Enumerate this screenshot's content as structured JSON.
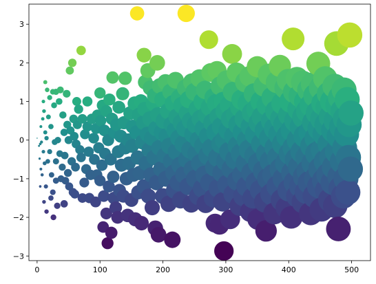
{
  "chart_data": {
    "type": "scatter",
    "title": "",
    "xlabel": "",
    "ylabel": "",
    "xlim": [
      -13,
      530
    ],
    "ylim": [
      -3.12,
      3.52
    ],
    "x_ticks": [
      0,
      100,
      200,
      300,
      400,
      500
    ],
    "y_ticks": [
      -3,
      -2,
      -1,
      0,
      1,
      2,
      3
    ],
    "grid": false,
    "legend": "none",
    "colormap": "viridis",
    "color_encodes": "y",
    "size_encodes": "x",
    "color_range": [
      -2.9,
      3.3
    ],
    "points": [
      [
        0,
        0.05
      ],
      [
        3,
        -0.15
      ],
      [
        4,
        -0.48
      ],
      [
        5,
        -1.2
      ],
      [
        5,
        -0.1
      ],
      [
        6,
        -0.75
      ],
      [
        6,
        0.35
      ],
      [
        7,
        -0.05
      ],
      [
        8,
        -0.9
      ],
      [
        9,
        0.55
      ],
      [
        10,
        -0.3
      ],
      [
        10,
        1.0
      ],
      [
        11,
        -1.6
      ],
      [
        11,
        0.75
      ],
      [
        12,
        -0.6
      ],
      [
        13,
        1.5
      ],
      [
        13,
        0.2
      ],
      [
        14,
        -1.2
      ],
      [
        15,
        -1.85
      ],
      [
        15,
        0.05
      ],
      [
        16,
        1.3
      ],
      [
        17,
        -0.55
      ],
      [
        18,
        0.6
      ],
      [
        20,
        -0.3
      ],
      [
        20,
        1.1
      ],
      [
        22,
        -1.5
      ],
      [
        22,
        0.35
      ],
      [
        23,
        -0.9
      ],
      [
        25,
        -1.35
      ],
      [
        25,
        1.25
      ],
      [
        26,
        -2.0
      ],
      [
        27,
        0.9
      ],
      [
        28,
        -0.05
      ],
      [
        30,
        -0.55
      ],
      [
        30,
        1.25
      ],
      [
        30,
        -1.05
      ],
      [
        32,
        -1.7
      ],
      [
        33,
        0.0
      ],
      [
        35,
        1.0
      ],
      [
        36,
        -0.35
      ],
      [
        37,
        1.3
      ],
      [
        38,
        -1.0
      ],
      [
        40,
        -0.7
      ],
      [
        41,
        0.65
      ],
      [
        43,
        -1.65
      ],
      [
        43,
        0.2
      ],
      [
        44,
        -0.4
      ],
      [
        45,
        -1.05
      ],
      [
        47,
        1.2
      ],
      [
        48,
        0.4
      ],
      [
        49,
        -0.85
      ],
      [
        50,
        0.0
      ],
      [
        51,
        -1.2
      ],
      [
        52,
        1.8
      ],
      [
        53,
        0.25
      ],
      [
        55,
        -0.55
      ],
      [
        56,
        2.0
      ],
      [
        57,
        -1.35
      ],
      [
        58,
        0.55
      ],
      [
        59,
        0.1
      ],
      [
        60,
        -1.4
      ],
      [
        61,
        -0.7
      ],
      [
        62,
        -0.1
      ],
      [
        63,
        1.0
      ],
      [
        64,
        0.4
      ],
      [
        66,
        0.8
      ],
      [
        68,
        -0.25
      ],
      [
        70,
        2.32
      ],
      [
        70,
        -0.45
      ],
      [
        72,
        -1.5
      ],
      [
        72,
        0.55
      ],
      [
        75,
        -1.1
      ],
      [
        76,
        0.15
      ],
      [
        78,
        -0.75
      ],
      [
        80,
        0.35
      ],
      [
        80,
        1.0
      ],
      [
        82,
        -0.3
      ],
      [
        83,
        -1.5
      ],
      [
        85,
        -0.9
      ],
      [
        87,
        0.55
      ],
      [
        90,
        0.05
      ],
      [
        91,
        -0.5
      ],
      [
        93,
        -1.6
      ],
      [
        94,
        0.3
      ],
      [
        95,
        -0.9
      ],
      [
        96,
        0.65
      ],
      [
        98,
        -0.2
      ],
      [
        100,
        1.22
      ],
      [
        100,
        -1.05
      ],
      [
        101,
        0.5
      ],
      [
        103,
        -0.65
      ],
      [
        104,
        0.9
      ],
      [
        105,
        -2.25
      ],
      [
        106,
        -1.45
      ],
      [
        107,
        0.25
      ],
      [
        108,
        -0.35
      ],
      [
        110,
        -1.9
      ],
      [
        110,
        0.75
      ],
      [
        112,
        -2.67
      ],
      [
        113,
        0.0
      ],
      [
        114,
        -1.2
      ],
      [
        115,
        1.05
      ],
      [
        117,
        -0.5
      ],
      [
        118,
        -2.4
      ],
      [
        119,
        0.55
      ],
      [
        120,
        1.62
      ],
      [
        121,
        -0.95
      ],
      [
        122,
        -1.5
      ],
      [
        123,
        0.2
      ],
      [
        125,
        -1.75
      ],
      [
        126,
        0.4
      ],
      [
        128,
        -2.0
      ],
      [
        129,
        -0.3
      ],
      [
        130,
        0.85
      ],
      [
        131,
        -1.3
      ],
      [
        133,
        0.1
      ],
      [
        134,
        -0.65
      ],
      [
        136,
        1.2
      ],
      [
        137,
        -1.45
      ],
      [
        138,
        0.45
      ],
      [
        140,
        -0.2
      ],
      [
        140,
        1.6
      ],
      [
        142,
        -1.0
      ],
      [
        144,
        -1.95
      ],
      [
        145,
        0.0
      ],
      [
        146,
        -0.6
      ],
      [
        148,
        0.7
      ],
      [
        150,
        -1.55
      ],
      [
        151,
        -0.15
      ],
      [
        152,
        0.35
      ],
      [
        153,
        -0.9
      ],
      [
        155,
        0.95
      ],
      [
        156,
        -2.05
      ],
      [
        158,
        0.2
      ],
      [
        159,
        3.28
      ],
      [
        160,
        -0.45
      ],
      [
        161,
        -1.35
      ],
      [
        162,
        0.65
      ],
      [
        163,
        -0.85
      ],
      [
        165,
        1.0
      ],
      [
        166,
        -2.15
      ],
      [
        167,
        -0.05
      ],
      [
        169,
        0.45
      ],
      [
        170,
        2.2
      ],
      [
        170,
        -1.2
      ],
      [
        171,
        0.8
      ],
      [
        172,
        1.5
      ],
      [
        173,
        -0.6
      ],
      [
        175,
        0.15
      ],
      [
        176,
        1.8
      ],
      [
        177,
        -1.45
      ],
      [
        178,
        -0.25
      ],
      [
        179,
        0.55
      ],
      [
        180,
        1.35
      ],
      [
        181,
        -0.9
      ],
      [
        182,
        0.05
      ],
      [
        183,
        -1.75
      ],
      [
        185,
        0.95
      ],
      [
        186,
        -0.45
      ],
      [
        187,
        1.15
      ],
      [
        188,
        -2.28
      ],
      [
        189,
        0.3
      ],
      [
        190,
        -1.1
      ],
      [
        191,
        2.0
      ],
      [
        192,
        0.65
      ],
      [
        193,
        -2.45
      ],
      [
        194,
        -0.2
      ],
      [
        195,
        1.4
      ],
      [
        197,
        -0.75
      ],
      [
        198,
        0.2
      ],
      [
        199,
        1.05
      ],
      [
        200,
        -1.45
      ],
      [
        201,
        0.5
      ],
      [
        203,
        -0.4
      ],
      [
        204,
        1.5
      ],
      [
        205,
        -1.0
      ],
      [
        206,
        0.1
      ],
      [
        208,
        0.75
      ],
      [
        209,
        -1.65
      ],
      [
        210,
        -0.15
      ],
      [
        212,
        1.25
      ],
      [
        213,
        -0.55
      ],
      [
        214,
        0.4
      ],
      [
        215,
        -2.58
      ],
      [
        216,
        0.95
      ],
      [
        217,
        -0.85
      ],
      [
        218,
        -1.3
      ],
      [
        219,
        0.25
      ],
      [
        220,
        1.55
      ],
      [
        221,
        -0.3
      ],
      [
        222,
        0.6
      ],
      [
        224,
        -1.1
      ],
      [
        225,
        0.05
      ],
      [
        226,
        1.1
      ],
      [
        227,
        -0.65
      ],
      [
        228,
        -1.55
      ],
      [
        229,
        0.45
      ],
      [
        230,
        0.9
      ],
      [
        232,
        -0.1
      ],
      [
        233,
        -0.9
      ],
      [
        235,
        0.3
      ],
      [
        236,
        1.35
      ],
      [
        237,
        3.28
      ],
      [
        238,
        -0.5
      ],
      [
        239,
        0.7
      ],
      [
        240,
        -1.2
      ],
      [
        241,
        1.05
      ],
      [
        243,
        -0.25
      ],
      [
        244,
        0.5
      ],
      [
        245,
        -1.65
      ],
      [
        246,
        1.5
      ],
      [
        247,
        -0.75
      ],
      [
        248,
        0.15
      ],
      [
        250,
        1.25
      ],
      [
        251,
        -1.0
      ],
      [
        252,
        0.4
      ],
      [
        253,
        -0.35
      ],
      [
        255,
        0.8
      ],
      [
        256,
        -1.45
      ],
      [
        257,
        0.0
      ],
      [
        258,
        1.6
      ],
      [
        259,
        -0.6
      ],
      [
        260,
        0.55
      ],
      [
        262,
        -1.25
      ],
      [
        263,
        1.0
      ],
      [
        264,
        -0.15
      ],
      [
        265,
        0.3
      ],
      [
        266,
        -0.9
      ],
      [
        267,
        1.3
      ],
      [
        268,
        -1.65
      ],
      [
        270,
        0.65
      ],
      [
        271,
        -0.4
      ],
      [
        272,
        0.1
      ],
      [
        273,
        2.6
      ],
      [
        274,
        -1.1
      ],
      [
        275,
        0.85
      ],
      [
        276,
        1.75
      ],
      [
        277,
        -0.2
      ],
      [
        279,
        0.45
      ],
      [
        280,
        -1.5
      ],
      [
        281,
        1.1
      ],
      [
        282,
        -0.7
      ],
      [
        283,
        -2.15
      ],
      [
        284,
        0.2
      ],
      [
        285,
        0.95
      ],
      [
        286,
        1.8
      ],
      [
        287,
        -0.45
      ],
      [
        288,
        -1.25
      ],
      [
        289,
        0.6
      ],
      [
        290,
        -2.2
      ],
      [
        291,
        1.4
      ],
      [
        292,
        -0.1
      ],
      [
        293,
        0.35
      ],
      [
        294,
        -0.85
      ],
      [
        295,
        -1.6
      ],
      [
        296,
        1.0
      ],
      [
        297,
        -2.87
      ],
      [
        298,
        0.0
      ],
      [
        299,
        0.75
      ],
      [
        300,
        -0.55
      ],
      [
        301,
        1.55
      ],
      [
        302,
        -1.15
      ],
      [
        304,
        0.25
      ],
      [
        305,
        -0.3
      ],
      [
        306,
        0.9
      ],
      [
        307,
        -2.05
      ],
      [
        308,
        0.55
      ],
      [
        309,
        -0.75
      ],
      [
        310,
        2.23
      ],
      [
        311,
        1.25
      ],
      [
        312,
        -1.4
      ],
      [
        313,
        0.1
      ],
      [
        315,
        -0.5
      ],
      [
        316,
        0.65
      ],
      [
        317,
        1.75
      ],
      [
        318,
        -1.05
      ],
      [
        319,
        -0.15
      ],
      [
        320,
        0.4
      ],
      [
        322,
        -1.7
      ],
      [
        323,
        0.85
      ],
      [
        324,
        -0.35
      ],
      [
        325,
        1.05
      ],
      [
        326,
        -0.9
      ],
      [
        327,
        0.2
      ],
      [
        328,
        -1.45
      ],
      [
        330,
        0.55
      ],
      [
        331,
        1.5
      ],
      [
        332,
        -0.6
      ],
      [
        333,
        -1.2
      ],
      [
        334,
        0.0
      ],
      [
        335,
        0.95
      ],
      [
        337,
        -0.25
      ],
      [
        338,
        1.65
      ],
      [
        339,
        -1.85
      ],
      [
        340,
        0.35
      ],
      [
        341,
        -0.85
      ],
      [
        342,
        0.7
      ],
      [
        343,
        -1.5
      ],
      [
        345,
        1.2
      ],
      [
        346,
        -0.4
      ],
      [
        347,
        0.15
      ],
      [
        348,
        -1.1
      ],
      [
        349,
        0.8
      ],
      [
        350,
        1.9
      ],
      [
        351,
        -2.05
      ],
      [
        352,
        -0.6
      ],
      [
        353,
        0.45
      ],
      [
        355,
        -1.3
      ],
      [
        356,
        1.0
      ],
      [
        357,
        -0.1
      ],
      [
        358,
        0.6
      ],
      [
        360,
        -0.8
      ],
      [
        361,
        1.4
      ],
      [
        362,
        -1.6
      ],
      [
        363,
        0.25
      ],
      [
        364,
        -2.35
      ],
      [
        365,
        -0.35
      ],
      [
        366,
        0.9
      ],
      [
        367,
        -1.0
      ],
      [
        368,
        1.7
      ],
      [
        370,
        0.05
      ],
      [
        371,
        -0.55
      ],
      [
        372,
        -1.4
      ],
      [
        373,
        0.5
      ],
      [
        374,
        1.1
      ],
      [
        375,
        -0.9
      ],
      [
        377,
        -1.9
      ],
      [
        378,
        0.3
      ],
      [
        379,
        -0.2
      ],
      [
        380,
        0.75
      ],
      [
        381,
        1.5
      ],
      [
        382,
        -1.2
      ],
      [
        383,
        -0.45
      ],
      [
        385,
        0.15
      ],
      [
        386,
        1.92
      ],
      [
        387,
        -0.75
      ],
      [
        388,
        0.55
      ],
      [
        389,
        -1.55
      ],
      [
        390,
        0.95
      ],
      [
        391,
        -0.1
      ],
      [
        392,
        -1.0
      ],
      [
        393,
        0.4
      ],
      [
        395,
        1.35
      ],
      [
        396,
        -0.6
      ],
      [
        397,
        -1.75
      ],
      [
        398,
        0.1
      ],
      [
        399,
        1.55
      ],
      [
        400,
        -1.3
      ],
      [
        401,
        0.65
      ],
      [
        402,
        -0.35
      ],
      [
        403,
        1.0
      ],
      [
        404,
        -2.0
      ],
      [
        405,
        0.25
      ],
      [
        406,
        -0.85
      ],
      [
        407,
        2.62
      ],
      [
        408,
        -0.2
      ],
      [
        409,
        1.25
      ],
      [
        410,
        -1.1
      ],
      [
        411,
        0.5
      ],
      [
        412,
        -0.5
      ],
      [
        413,
        1.6
      ],
      [
        414,
        -1.45
      ],
      [
        415,
        0.0
      ],
      [
        416,
        0.8
      ],
      [
        417,
        -0.7
      ],
      [
        418,
        1.15
      ],
      [
        419,
        -1.2
      ],
      [
        420,
        0.35
      ],
      [
        421,
        -0.3
      ],
      [
        422,
        1.5
      ],
      [
        423,
        -1.6
      ],
      [
        424,
        0.6
      ],
      [
        425,
        -0.95
      ],
      [
        426,
        0.1
      ],
      [
        427,
        1.0
      ],
      [
        428,
        -1.35
      ],
      [
        429,
        -0.45
      ],
      [
        430,
        0.75
      ],
      [
        431,
        -0.8
      ],
      [
        432,
        1.3
      ],
      [
        433,
        -1.1
      ],
      [
        434,
        0.2
      ],
      [
        435,
        -1.9
      ],
      [
        436,
        0.9
      ],
      [
        437,
        -0.15
      ],
      [
        438,
        1.45
      ],
      [
        439,
        -0.6
      ],
      [
        440,
        0.45
      ],
      [
        441,
        -1.45
      ],
      [
        442,
        1.15
      ],
      [
        443,
        -1.0
      ],
      [
        444,
        0.05
      ],
      [
        445,
        -0.35
      ],
      [
        446,
        0.7
      ],
      [
        447,
        1.98
      ],
      [
        448,
        -1.2
      ],
      [
        449,
        0.3
      ],
      [
        450,
        -0.75
      ],
      [
        451,
        1.35
      ],
      [
        452,
        -1.8
      ],
      [
        453,
        0.55
      ],
      [
        454,
        -0.25
      ],
      [
        455,
        0.95
      ],
      [
        456,
        -1.05
      ],
      [
        457,
        0.15
      ],
      [
        458,
        1.6
      ],
      [
        459,
        -0.55
      ],
      [
        460,
        0.4
      ],
      [
        461,
        -1.3
      ],
      [
        462,
        0.85
      ],
      [
        463,
        -0.9
      ],
      [
        464,
        1.2
      ],
      [
        465,
        -0.1
      ],
      [
        466,
        -1.55
      ],
      [
        467,
        0.6
      ],
      [
        468,
        -0.45
      ],
      [
        469,
        1.0
      ],
      [
        470,
        -1.1
      ],
      [
        471,
        0.25
      ],
      [
        472,
        -0.7
      ],
      [
        473,
        1.4
      ],
      [
        474,
        -1.7
      ],
      [
        475,
        0.5
      ],
      [
        476,
        2.5
      ],
      [
        477,
        -0.3
      ],
      [
        478,
        0.9
      ],
      [
        479,
        -2.3
      ],
      [
        480,
        0.1
      ],
      [
        481,
        -0.95
      ],
      [
        482,
        1.1
      ],
      [
        483,
        -1.25
      ],
      [
        484,
        0.35
      ],
      [
        485,
        -0.55
      ],
      [
        486,
        0.75
      ],
      [
        487,
        -1.45
      ],
      [
        488,
        1.3
      ],
      [
        489,
        -0.2
      ],
      [
        490,
        0.55
      ],
      [
        491,
        -1.0
      ],
      [
        492,
        0.15
      ],
      [
        493,
        1.05
      ],
      [
        494,
        -1.35
      ],
      [
        495,
        -0.45
      ],
      [
        496,
        0.4
      ],
      [
        497,
        2.72
      ],
      [
        498,
        -0.75
      ],
      [
        499,
        0.7
      ]
    ]
  }
}
